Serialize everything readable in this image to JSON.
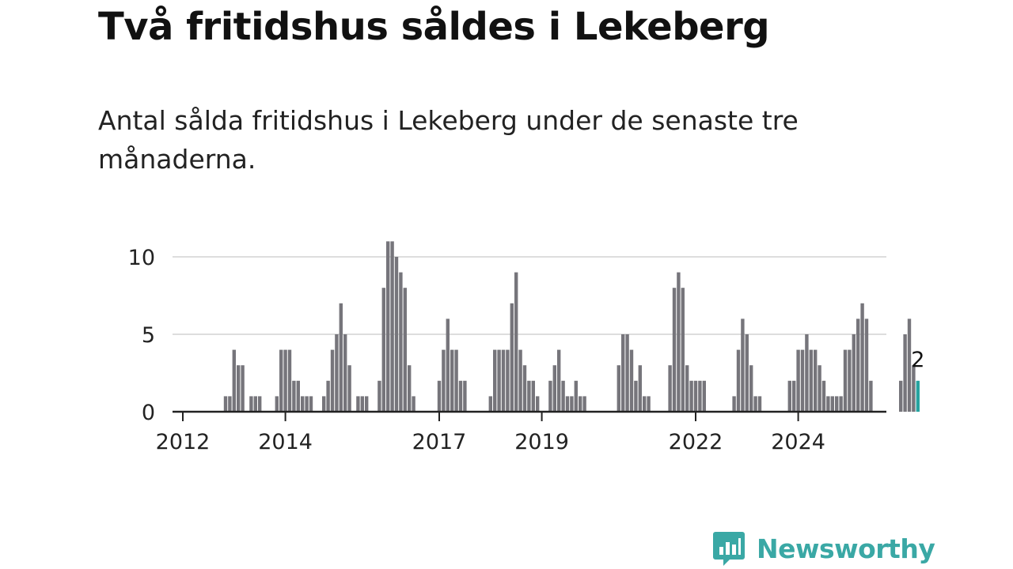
{
  "title": "Två fritidshus såldes i Lekeberg",
  "subtitle": "Antal sålda fritidshus i Lekeberg under de senaste tre månaderna.",
  "brand": {
    "name": "Newsworthy",
    "icon": "bar-chart-speech-bubble-icon"
  },
  "colors": {
    "bar": "#76757b",
    "highlight": "#27a3a0",
    "grid": "#dddddd",
    "axis": "#222222",
    "brand": "#3aa8a5"
  },
  "chart_data": {
    "type": "bar",
    "title": "",
    "xlabel": "",
    "ylabel": "",
    "ylim": [
      0,
      11.5
    ],
    "yticks": [
      0,
      5,
      10
    ],
    "grid": true,
    "start": "2011-11",
    "xticks": [
      "2012",
      "2014",
      "2017",
      "2019",
      "2022",
      "2024"
    ],
    "values": [
      0,
      0,
      0,
      0,
      0,
      0,
      0,
      0,
      0,
      0,
      0,
      0,
      1,
      1,
      4,
      3,
      3,
      0,
      1,
      1,
      1,
      0,
      0,
      0,
      1,
      4,
      4,
      4,
      2,
      2,
      1,
      1,
      1,
      0,
      0,
      1,
      2,
      4,
      5,
      7,
      5,
      3,
      0,
      1,
      1,
      1,
      0,
      0,
      2,
      8,
      11,
      11,
      10,
      9,
      8,
      3,
      1,
      0,
      0,
      0,
      0,
      0,
      2,
      4,
      6,
      4,
      4,
      2,
      2,
      0,
      0,
      0,
      0,
      0,
      1,
      4,
      4,
      4,
      4,
      7,
      9,
      4,
      3,
      2,
      2,
      1,
      0,
      0,
      2,
      3,
      4,
      2,
      1,
      1,
      2,
      1,
      1,
      0,
      0,
      0,
      0,
      0,
      0,
      0,
      3,
      5,
      5,
      4,
      2,
      3,
      1,
      1,
      0,
      0,
      0,
      0,
      3,
      8,
      9,
      8,
      3,
      2,
      2,
      2,
      2,
      0,
      0,
      0,
      0,
      0,
      0,
      1,
      4,
      6,
      5,
      3,
      1,
      1,
      0,
      0,
      0,
      0,
      0,
      0,
      2,
      2,
      4,
      4,
      5,
      4,
      4,
      3,
      2,
      1,
      1,
      1,
      1,
      4,
      4,
      5,
      6,
      7,
      6,
      2,
      0,
      0,
      0,
      0,
      0,
      0,
      2,
      5,
      6,
      3,
      2
    ],
    "highlight": {
      "value": 2,
      "label": "2"
    }
  }
}
